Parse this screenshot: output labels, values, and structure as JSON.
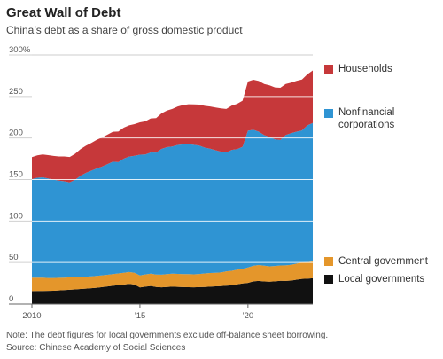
{
  "title": "Great Wall of Debt",
  "subtitle": "China’s debt as a share of gross domestic product",
  "note": "Note: The debt figures for local governments exclude off-balance sheet borrowing.",
  "source": "Source: Chinese Academy of Social Sciences",
  "colors": {
    "Households": "#c6383a",
    "Nonfinancial corporations": "#2f94d3",
    "Central government": "#e4962b",
    "Local governments": "#111111"
  },
  "chart_data": {
    "type": "area",
    "stacked": true,
    "x": [
      2010.0,
      2010.25,
      2010.5,
      2010.75,
      2011.0,
      2011.25,
      2011.5,
      2011.75,
      2012.0,
      2012.25,
      2012.5,
      2012.75,
      2013.0,
      2013.25,
      2013.5,
      2013.75,
      2014.0,
      2014.25,
      2014.5,
      2014.75,
      2015.0,
      2015.25,
      2015.5,
      2015.75,
      2016.0,
      2016.25,
      2016.5,
      2016.75,
      2017.0,
      2017.25,
      2017.5,
      2017.75,
      2018.0,
      2018.25,
      2018.5,
      2018.75,
      2019.0,
      2019.25,
      2019.5,
      2019.75,
      2020.0,
      2020.25,
      2020.5,
      2020.75,
      2021.0,
      2021.25,
      2021.5,
      2021.75,
      2022.0,
      2022.25,
      2022.5,
      2022.75,
      2023.0
    ],
    "x_tick_values": [
      2010,
      2015,
      2020
    ],
    "x_tick_labels": [
      "2010",
      "’15",
      "’20"
    ],
    "y_tick_values": [
      0,
      50,
      100,
      150,
      200,
      250,
      300
    ],
    "y_tick_labels": [
      "0",
      "50",
      "100",
      "150",
      "200",
      "250",
      "300%"
    ],
    "xlim": [
      2010.0,
      2023.0
    ],
    "ylim": [
      0,
      300
    ],
    "grid": true,
    "legend_placement": "right",
    "series": [
      {
        "name": "Local governments",
        "values": [
          15.6,
          15.7,
          15.8,
          15.9,
          16.0,
          16.4,
          16.8,
          17.2,
          17.6,
          18.1,
          18.6,
          19.1,
          19.6,
          20.4,
          21.2,
          22.0,
          22.8,
          23.5,
          24.3,
          23.5,
          20.0,
          21.0,
          21.8,
          20.5,
          20.1,
          20.6,
          21.0,
          20.7,
          20.4,
          20.3,
          20.1,
          20.4,
          20.6,
          21.0,
          21.4,
          21.6,
          22.2,
          22.6,
          23.8,
          24.8,
          25.5,
          27.4,
          27.9,
          27.2,
          27.0,
          27.4,
          28.0,
          27.9,
          28.3,
          29.3,
          30.3,
          30.6,
          31.1
        ]
      },
      {
        "name": "Central government",
        "values": [
          16.2,
          16.1,
          15.9,
          15.5,
          15.3,
          15.2,
          15.0,
          14.9,
          14.7,
          14.6,
          14.4,
          14.3,
          14.3,
          14.2,
          14.1,
          14.0,
          14.1,
          14.2,
          14.3,
          14.2,
          14.5,
          14.6,
          14.8,
          15.0,
          15.3,
          15.4,
          15.5,
          15.6,
          15.6,
          15.7,
          15.7,
          15.8,
          16.2,
          16.3,
          16.3,
          16.4,
          17.2,
          17.4,
          17.6,
          17.5,
          18.5,
          18.7,
          19.1,
          19.0,
          18.4,
          18.4,
          18.5,
          18.7,
          19.0,
          19.4,
          19.9,
          19.8,
          20.3
        ]
      },
      {
        "name": "Nonfinancial corporations",
        "values": [
          118.7,
          120.3,
          120.9,
          120.0,
          118.6,
          117.0,
          116.0,
          114.4,
          117.4,
          121.8,
          125.0,
          127.3,
          129.4,
          131.0,
          133.3,
          135.5,
          134.0,
          137.4,
          139.0,
          140.9,
          145.4,
          144.6,
          146.0,
          146.9,
          151.4,
          153.0,
          153.3,
          155.4,
          156.3,
          156.6,
          156.0,
          154.6,
          151.7,
          149.8,
          147.5,
          145.5,
          143.1,
          145.6,
          145.2,
          147.1,
          164.9,
          163.8,
          160.6,
          157.3,
          156.0,
          152.5,
          151.1,
          157.1,
          158.5,
          159.0,
          158.9,
          164.9,
          166.6
        ]
      },
      {
        "name": "Households",
        "values": [
          26.5,
          27.0,
          27.5,
          28.0,
          28.5,
          29.2,
          29.9,
          30.6,
          31.3,
          32.0,
          32.7,
          33.4,
          34.5,
          35.1,
          35.5,
          36.0,
          36.9,
          37.3,
          37.7,
          38.1,
          39.0,
          39.8,
          40.9,
          41.6,
          42.9,
          44.0,
          45.2,
          46.3,
          47.4,
          48.0,
          48.7,
          49.4,
          50.2,
          50.8,
          51.5,
          52.2,
          52.5,
          53.4,
          54.6,
          55.5,
          59.1,
          60.2,
          61.0,
          61.6,
          62.1,
          62.6,
          62.9,
          61.4,
          60.9,
          61.1,
          61.3,
          61.4,
          63.3
        ]
      }
    ]
  }
}
